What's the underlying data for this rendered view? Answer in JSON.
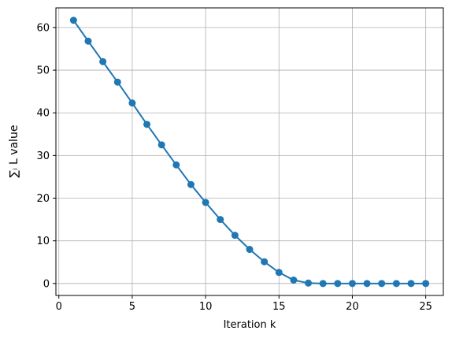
{
  "chart_data": {
    "type": "line",
    "xlabel": "Iteration k",
    "ylabel": "∑ᵢ L value",
    "x": [
      1,
      2,
      3,
      4,
      5,
      6,
      7,
      8,
      9,
      10,
      11,
      12,
      13,
      14,
      15,
      16,
      17,
      18,
      19,
      20,
      21,
      22,
      23,
      24,
      25
    ],
    "series": [
      {
        "name": "L",
        "color": "#1f77b4",
        "values": [
          61.7,
          56.8,
          52.0,
          47.2,
          42.3,
          37.3,
          32.5,
          27.8,
          23.2,
          19.0,
          15.0,
          11.3,
          8.0,
          5.1,
          2.6,
          0.8,
          0.1,
          0,
          0,
          0,
          0,
          0,
          0,
          0,
          0
        ]
      }
    ],
    "xlim": [
      -0.2,
      26.2
    ],
    "ylim": [
      -2.8,
      64.6
    ],
    "xticks": [
      0,
      5,
      10,
      15,
      20,
      25
    ],
    "yticks": [
      0,
      10,
      20,
      30,
      40,
      50,
      60
    ],
    "grid": true
  }
}
